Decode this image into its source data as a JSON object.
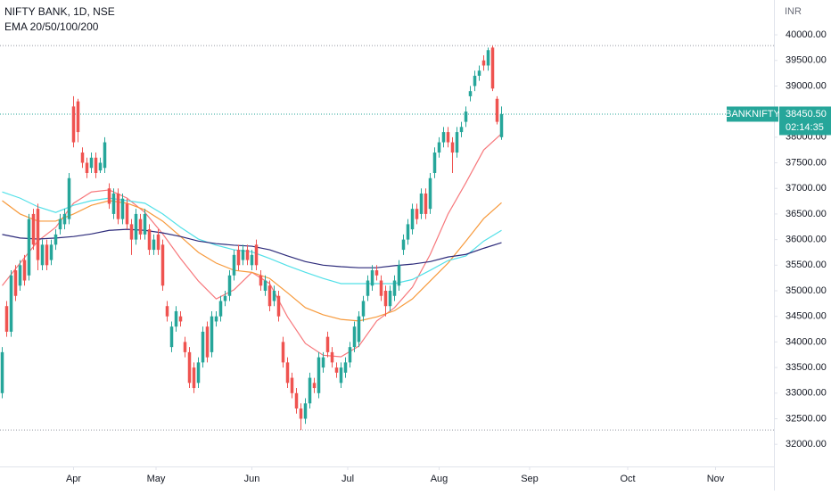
{
  "chart_data": {
    "type": "candlestick",
    "title": "NIFTY BANK, 1D, NSE",
    "subtitle": "EMA 20/50/100/200",
    "currency": "INR",
    "up_color": "#26a69a",
    "down_color": "#ef5350",
    "xlim": [
      -0.5,
      173.1
    ],
    "xticks": [
      {
        "value": 16,
        "label": "Apr"
      },
      {
        "value": 34.5,
        "label": "May"
      },
      {
        "value": 56,
        "label": "Jun"
      },
      {
        "value": 77.5,
        "label": "Jul"
      },
      {
        "value": 98,
        "label": "Aug"
      },
      {
        "value": 118.3,
        "label": "Sep"
      },
      {
        "value": 140.3,
        "label": "Oct"
      },
      {
        "value": 160,
        "label": "Nov"
      }
    ],
    "ylim": [
      31620,
      40680
    ],
    "yticks": [
      {
        "value": 40000,
        "label": "40000.00"
      },
      {
        "value": 39500,
        "label": "39500.00"
      },
      {
        "value": 39000,
        "label": "39000.00"
      },
      {
        "value": 38500,
        "label": "38500.00"
      },
      {
        "value": 38000,
        "label": "38000.00"
      },
      {
        "value": 37500,
        "label": "37500.00"
      },
      {
        "value": 37000,
        "label": "37000.00"
      },
      {
        "value": 36500,
        "label": "36500.00"
      },
      {
        "value": 36000,
        "label": "36000.00"
      },
      {
        "value": 35500,
        "label": "35500.00"
      },
      {
        "value": 35000,
        "label": "35000.00"
      },
      {
        "value": 34500,
        "label": "34500.00"
      },
      {
        "value": 34000,
        "label": "34000.00"
      },
      {
        "value": 33500,
        "label": "33500.00"
      },
      {
        "value": 33000,
        "label": "33000.00"
      },
      {
        "value": 32500,
        "label": "32500.00"
      },
      {
        "value": 32000,
        "label": "32000.00"
      }
    ],
    "open": [
      33000,
      34700,
      34200,
      35400,
      35100,
      35600,
      35300,
      36500,
      36600,
      35500,
      35900,
      35600,
      35900,
      36200,
      36300,
      36400,
      38600,
      38700,
      37700,
      37500,
      37400,
      37600,
      37350,
      37400,
      37000,
      36500,
      36900,
      36400,
      36700,
      36300,
      36000,
      36400,
      36100,
      36200,
      35800,
      36100,
      35900,
      34700,
      33900,
      34300,
      34500,
      34000,
      33800,
      33500,
      33200,
      33600,
      34300,
      33800,
      34400,
      34500,
      34800,
      34900,
      35300,
      35800,
      35600,
      35800,
      35500,
      35900,
      35300,
      35000,
      35100,
      34800,
      34900,
      34000,
      33600,
      33300,
      33000,
      32700,
      32500,
      32800,
      33200,
      33000,
      33500,
      34100,
      33800,
      33500,
      33200,
      33400,
      33600,
      33900,
      34000,
      34500,
      34900,
      35100,
      35400,
      35200,
      35000,
      34700,
      34900,
      35100,
      35800,
      36000,
      36200,
      36600,
      36500,
      36900,
      36600,
      37300,
      37700,
      37900,
      38100,
      37900,
      37700,
      38100,
      38300,
      38800,
      39000,
      39200,
      39500,
      39400,
      39750,
      38750,
      38000
    ],
    "high": [
      33900,
      34800,
      35400,
      35500,
      35600,
      35700,
      36500,
      36600,
      36700,
      36000,
      36000,
      36000,
      36200,
      36500,
      36600,
      37300,
      38800,
      38750,
      37800,
      37600,
      37700,
      37700,
      37600,
      38000,
      37100,
      37000,
      37000,
      36900,
      36800,
      36400,
      36600,
      36500,
      36600,
      36300,
      36100,
      36200,
      36000,
      34800,
      34400,
      34700,
      34600,
      34100,
      33900,
      33600,
      33700,
      34300,
      34400,
      34600,
      34600,
      34900,
      35000,
      35400,
      35800,
      35900,
      35900,
      35900,
      35800,
      36000,
      35400,
      35300,
      35200,
      35100,
      35000,
      34100,
      33700,
      33400,
      33100,
      32800,
      32900,
      33400,
      33300,
      33800,
      33800,
      34200,
      33900,
      33600,
      33600,
      33700,
      34000,
      34400,
      34600,
      34900,
      35300,
      35500,
      35500,
      35300,
      35100,
      35100,
      35300,
      35600,
      36100,
      36400,
      36700,
      36700,
      37000,
      37000,
      37300,
      37800,
      38000,
      38200,
      38200,
      38000,
      38200,
      38300,
      38600,
      39000,
      39300,
      39400,
      39600,
      39750,
      39790,
      38800,
      38600
    ],
    "low": [
      32900,
      34100,
      34100,
      34800,
      35000,
      35100,
      35200,
      35800,
      35400,
      35400,
      35400,
      35500,
      35800,
      36100,
      36200,
      36300,
      37800,
      37900,
      37400,
      37200,
      37300,
      37200,
      37300,
      37300,
      36600,
      36400,
      36300,
      36300,
      36200,
      35700,
      35900,
      36000,
      36000,
      35700,
      35700,
      35700,
      35000,
      34400,
      33800,
      34200,
      34300,
      33700,
      33100,
      33000,
      33100,
      33500,
      33600,
      33700,
      34300,
      34400,
      34700,
      34800,
      35200,
      35400,
      35500,
      35500,
      35400,
      35400,
      35000,
      34900,
      34600,
      34700,
      34400,
      33500,
      33100,
      32900,
      32600,
      32280,
      32400,
      32700,
      33000,
      32900,
      33400,
      33700,
      33500,
      33300,
      33100,
      33300,
      33500,
      33800,
      33900,
      34400,
      34800,
      35000,
      35200,
      34800,
      34500,
      34600,
      34800,
      35000,
      35700,
      35900,
      36100,
      36300,
      36400,
      36400,
      36500,
      37200,
      37600,
      37800,
      37800,
      37300,
      37600,
      38000,
      38200,
      38700,
      38900,
      39100,
      39300,
      39300,
      38900,
      38250,
      37950
    ],
    "close": [
      33800,
      34200,
      35300,
      34900,
      35500,
      35200,
      36400,
      35900,
      35600,
      35900,
      35500,
      35900,
      36100,
      36400,
      36500,
      37200,
      37900,
      38100,
      37500,
      37300,
      37600,
      37300,
      37500,
      37900,
      36700,
      36900,
      36400,
      36800,
      36300,
      36000,
      36500,
      36100,
      36500,
      35800,
      36000,
      35800,
      35100,
      34500,
      34300,
      34600,
      34400,
      33800,
      33200,
      33100,
      33600,
      34200,
      33700,
      34500,
      34500,
      34800,
      34900,
      35300,
      35700,
      35500,
      35800,
      35600,
      35700,
      35500,
      35100,
      35200,
      34700,
      35000,
      34500,
      33600,
      33200,
      33000,
      32700,
      32500,
      32800,
      33300,
      33100,
      33700,
      33700,
      33800,
      33600,
      33400,
      33500,
      33600,
      33900,
      34300,
      34500,
      34800,
      35200,
      35400,
      35300,
      34900,
      34700,
      35000,
      35200,
      35500,
      36000,
      36300,
      36600,
      36400,
      36900,
      36500,
      37200,
      37700,
      37900,
      38100,
      37900,
      37700,
      38100,
      38200,
      38500,
      38900,
      39200,
      39300,
      39400,
      39700,
      38950,
      38300,
      38450.5
    ],
    "ema_x": [
      0,
      4,
      8,
      12,
      16,
      20,
      24,
      28,
      32,
      36,
      40,
      44,
      48,
      52,
      56,
      60,
      64,
      68,
      72,
      76,
      80,
      84,
      88,
      92,
      96,
      100,
      104,
      108,
      112
    ],
    "lines": [
      {
        "color": "#f7787c",
        "values": [
          35100,
          35540,
          35970,
          36240,
          36710,
          36930,
          36970,
          36810,
          36530,
          36110,
          35630,
          35190,
          34840,
          35020,
          35360,
          35140,
          34490,
          33970,
          33740,
          33710,
          33920,
          34410,
          34670,
          35070,
          35710,
          36500,
          37110,
          37750,
          38070
        ]
      },
      {
        "color": "#f79a3c",
        "values": [
          36760,
          36500,
          36360,
          36360,
          36500,
          36670,
          36760,
          36710,
          36580,
          36360,
          36060,
          35750,
          35540,
          35400,
          35360,
          35240,
          34960,
          34670,
          34530,
          34440,
          34410,
          34490,
          34610,
          34840,
          35190,
          35540,
          35970,
          36410,
          36720
        ]
      },
      {
        "color": "#52e0e8",
        "values": [
          36930,
          36810,
          36640,
          36530,
          36670,
          36760,
          36810,
          36760,
          36710,
          36500,
          36240,
          36010,
          35890,
          35800,
          35760,
          35630,
          35490,
          35360,
          35240,
          35140,
          35140,
          35140,
          35140,
          35220,
          35400,
          35590,
          35680,
          35970,
          36180
        ]
      },
      {
        "color": "#2c2a7a",
        "values": [
          36100,
          36030,
          36010,
          36030,
          36060,
          36110,
          36180,
          36200,
          36180,
          36130,
          36060,
          35970,
          35920,
          35890,
          35870,
          35800,
          35680,
          35570,
          35500,
          35470,
          35450,
          35450,
          35490,
          35520,
          35570,
          35660,
          35710,
          35830,
          35940
        ]
      }
    ],
    "high_line": 39790,
    "low_line": 32280,
    "symbol": "BANKNIFTY",
    "last_price": {
      "value": 38450.5,
      "label": "38450.50"
    },
    "countdown": "02:14:35"
  }
}
